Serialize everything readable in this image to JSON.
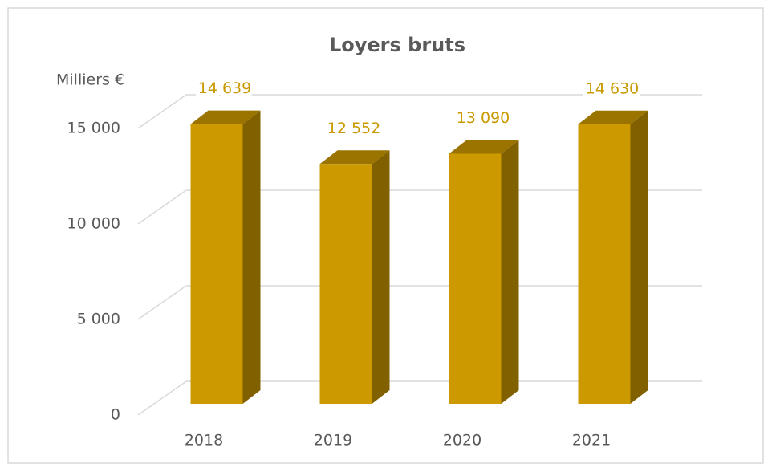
{
  "chart_data": {
    "type": "bar3d",
    "title": "Loyers bruts",
    "y_label": "Milliers €",
    "categories": [
      "2018",
      "2019",
      "2020",
      "2021"
    ],
    "values": [
      14639,
      12552,
      13090,
      14630
    ],
    "value_labels": [
      "14 639",
      "12 552",
      "13 090",
      "14 630"
    ],
    "color": "#cc9900",
    "ylim": [
      0,
      15000
    ],
    "yticks": [
      {
        "value": 0,
        "label": "0"
      },
      {
        "value": 5000,
        "label": "5 000"
      },
      {
        "value": 10000,
        "label": "10 000"
      },
      {
        "value": 15000,
        "label": "15 000"
      }
    ],
    "grid": true
  }
}
